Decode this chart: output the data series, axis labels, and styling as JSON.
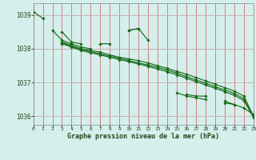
{
  "bg_color": "#d5efec",
  "grid_color_v": "#d08080",
  "grid_color_h": "#c8b0b0",
  "line_color": "#1a6b1a",
  "title": "Graphe pression niveau de la mer (hPa)",
  "ylim": [
    1035.75,
    1039.35
  ],
  "xlim": [
    0,
    23
  ],
  "yticks": [
    1036,
    1037,
    1038,
    1039
  ],
  "xticks": [
    0,
    1,
    2,
    3,
    4,
    5,
    6,
    7,
    8,
    9,
    10,
    11,
    12,
    13,
    14,
    15,
    16,
    17,
    18,
    19,
    20,
    21,
    22,
    23
  ],
  "series": [
    [
      1039.1,
      1038.9,
      null,
      1038.5,
      1038.2,
      1038.15,
      null,
      1038.15,
      1038.15,
      null,
      1038.55,
      1038.6,
      null,
      null,
      null,
      null,
      1036.65,
      1036.6,
      1036.6,
      null,
      1036.4,
      1036.35,
      null,
      1036.0
    ],
    [
      null,
      null,
      1038.55,
      1038.25,
      1038.15,
      1038.05,
      1038.0,
      null,
      null,
      null,
      1038.55,
      1038.6,
      1038.25,
      null,
      null,
      1036.7,
      1036.6,
      1036.55,
      1036.5,
      null,
      1036.45,
      1036.35,
      1036.25,
      1036.05
    ],
    [
      null,
      null,
      null,
      1038.2,
      1038.1,
      1038.0,
      1037.95,
      1037.9,
      1037.82,
      1037.75,
      1037.7,
      1037.65,
      1037.58,
      1037.5,
      1037.42,
      1037.33,
      1037.25,
      1037.15,
      1037.05,
      1036.95,
      1036.85,
      1036.75,
      1036.6,
      1036.0
    ],
    [
      null,
      null,
      null,
      1038.18,
      1038.08,
      1037.98,
      1037.92,
      1037.85,
      1037.78,
      1037.72,
      1037.65,
      1037.58,
      1037.52,
      1037.45,
      1037.37,
      1037.28,
      1037.18,
      1037.08,
      1036.98,
      1036.88,
      1036.78,
      1036.68,
      1036.52,
      1036.02
    ],
    [
      null,
      null,
      null,
      1038.15,
      1038.05,
      1037.95,
      1037.88,
      1037.82,
      1037.75,
      1037.68,
      1037.62,
      1037.55,
      1037.48,
      1037.4,
      1037.32,
      1037.23,
      1037.13,
      1037.03,
      1036.93,
      1036.83,
      1036.73,
      1036.62,
      1036.47,
      1035.97
    ]
  ]
}
